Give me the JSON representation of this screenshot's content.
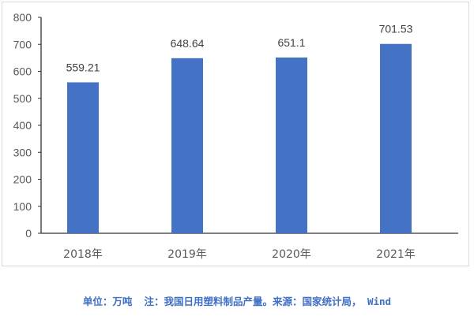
{
  "chart_data": {
    "type": "bar",
    "categories": [
      "2018年",
      "2019年",
      "2020年",
      "2021年"
    ],
    "values": [
      559.21,
      648.64,
      651.1,
      701.53
    ],
    "data_labels": [
      "559.21",
      "648.64",
      "651.1",
      "701.53"
    ],
    "title": "",
    "xlabel": "",
    "ylabel": "",
    "ylim": [
      0,
      800
    ],
    "yticks": [
      0,
      100,
      200,
      300,
      400,
      500,
      600,
      700,
      800
    ],
    "grid": false,
    "legend": "none",
    "bar_color": "#4472c4"
  },
  "footer": {
    "text": "单位：万吨  注：我国日用塑料制品产量。来源：国家统计局， Wind"
  }
}
